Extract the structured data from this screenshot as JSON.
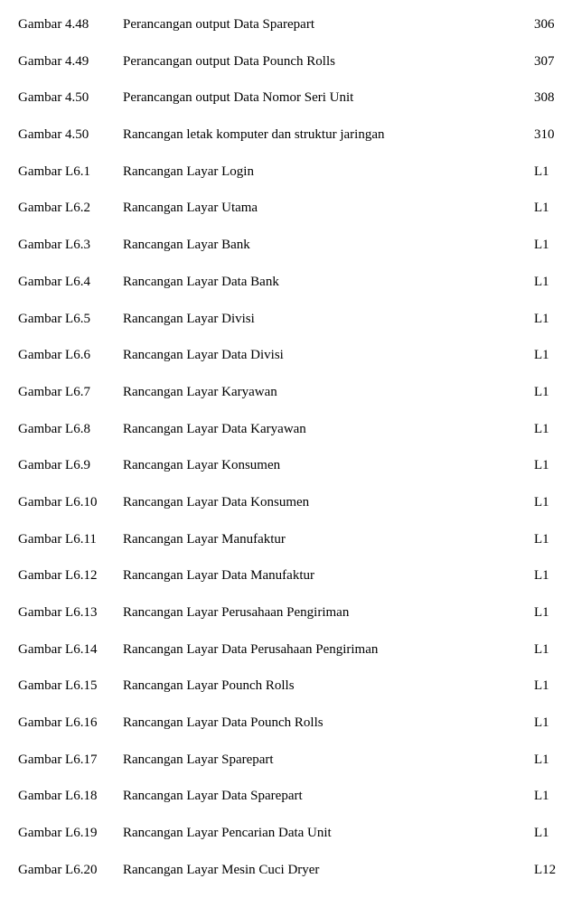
{
  "font": {
    "family": "Times New Roman",
    "size_pt": 12,
    "color": "#000000"
  },
  "background_color": "#ffffff",
  "entries": [
    {
      "figure": "Gambar 4.48",
      "description": "Perancangan output Data Sparepart",
      "page": "306"
    },
    {
      "figure": "Gambar 4.49",
      "description": "Perancangan output Data Pounch Rolls",
      "page": "307"
    },
    {
      "figure": "Gambar 4.50",
      "description": "Perancangan output Data Nomor Seri Unit",
      "page": "308"
    },
    {
      "figure": "Gambar 4.50",
      "description": "Rancangan letak komputer dan struktur jaringan",
      "page": "310"
    },
    {
      "figure": "Gambar L6.1",
      "description": "Rancangan Layar Login",
      "page": "L1"
    },
    {
      "figure": "Gambar L6.2",
      "description": "Rancangan Layar Utama",
      "page": "L1"
    },
    {
      "figure": "Gambar L6.3",
      "description": "Rancangan Layar Bank",
      "page": "L1"
    },
    {
      "figure": "Gambar L6.4",
      "description": "Rancangan Layar Data Bank",
      "page": "L1"
    },
    {
      "figure": "Gambar L6.5",
      "description": "Rancangan Layar Divisi",
      "page": "L1"
    },
    {
      "figure": "Gambar L6.6",
      "description": "Rancangan Layar Data Divisi",
      "page": "L1"
    },
    {
      "figure": "Gambar L6.7",
      "description": "Rancangan Layar Karyawan",
      "page": "L1"
    },
    {
      "figure": "Gambar L6.8",
      "description": "Rancangan Layar Data Karyawan",
      "page": "L1"
    },
    {
      "figure": "Gambar L6.9",
      "description": "Rancangan Layar Konsumen",
      "page": "L1"
    },
    {
      "figure": "Gambar L6.10",
      "description": "Rancangan Layar Data Konsumen",
      "page": "L1"
    },
    {
      "figure": "Gambar L6.11",
      "description": "Rancangan Layar Manufaktur",
      "page": "L1"
    },
    {
      "figure": "Gambar L6.12",
      "description": "Rancangan Layar Data Manufaktur",
      "page": "L1"
    },
    {
      "figure": "Gambar L6.13",
      "description": "Rancangan Layar Perusahaan Pengiriman",
      "page": "L1"
    },
    {
      "figure": "Gambar L6.14",
      "description": "Rancangan Layar Data Perusahaan Pengiriman",
      "page": "L1"
    },
    {
      "figure": "Gambar L6.15",
      "description": "Rancangan Layar Pounch Rolls",
      "page": "L1"
    },
    {
      "figure": "Gambar L6.16",
      "description": "Rancangan Layar Data Pounch Rolls",
      "page": "L1"
    },
    {
      "figure": "Gambar L6.17",
      "description": "Rancangan Layar Sparepart",
      "page": "L1"
    },
    {
      "figure": "Gambar L6.18",
      "description": "Rancangan Layar Data Sparepart",
      "page": "L1"
    },
    {
      "figure": "Gambar L6.19",
      "description": "Rancangan Layar Pencarian Data Unit",
      "page": "L1"
    },
    {
      "figure": "Gambar L6.20",
      "description": "Rancangan Layar Mesin Cuci Dryer",
      "page": "L12"
    }
  ]
}
